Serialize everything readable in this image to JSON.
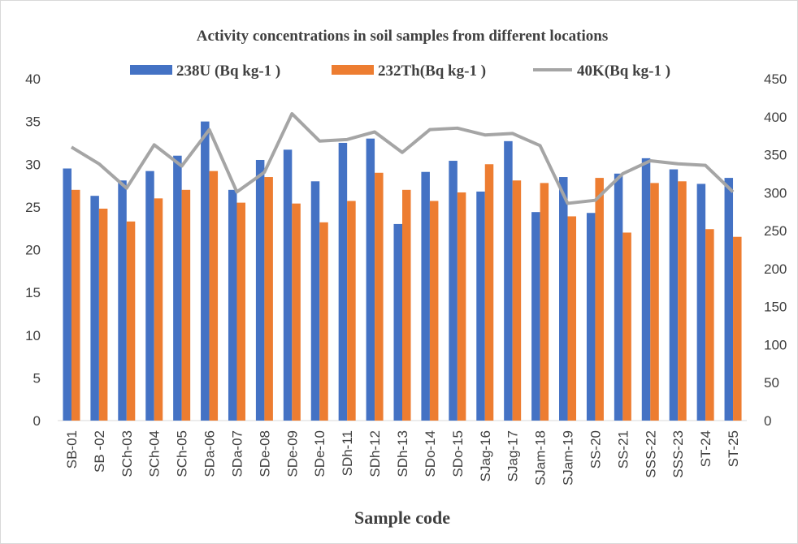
{
  "chart_data": {
    "type": "bar",
    "title": "Activity concentrations in soil samples from different locations",
    "x_label": "Sample code",
    "categories": [
      "SB-01",
      "SB -02",
      "SCh-03",
      "SCh-04",
      "SCh-05",
      "SDa-06",
      "SDa-07",
      "SDe-08",
      "SDe-09",
      "SDe-10",
      "SDh-11",
      "SDh-12",
      "SDh-13",
      "SDo-14",
      "SDo-15",
      "SJag-16",
      "SJag-17",
      "SJam-18",
      "SJam-19",
      "SS-20",
      "SS-21",
      "SSS-22",
      "SSS-23",
      "ST-24",
      "ST-25"
    ],
    "series": [
      {
        "name": "238U (Bq kg-1 )",
        "color": "#4472c4",
        "type": "bar",
        "values": [
          29.5,
          26.3,
          28.1,
          29.2,
          31.0,
          35.0,
          27.0,
          30.5,
          31.7,
          28.0,
          32.5,
          33.0,
          23.0,
          29.1,
          30.4,
          26.8,
          32.7,
          24.4,
          28.5,
          24.3,
          28.9,
          30.7,
          29.4,
          27.7,
          28.4
        ]
      },
      {
        "name": "232Th(Bq kg-1 )",
        "color": "#ed7d31",
        "type": "bar",
        "values": [
          27.0,
          24.8,
          23.3,
          26.0,
          27.0,
          29.2,
          25.5,
          28.5,
          25.4,
          23.2,
          25.7,
          29.0,
          27.0,
          25.7,
          26.7,
          30.0,
          28.1,
          27.8,
          23.9,
          28.4,
          22.0,
          27.8,
          28.0,
          22.4,
          21.5
        ]
      },
      {
        "name": "40K(Bq kg-1 )",
        "color": "#a5a5a5",
        "type": "line",
        "axis": "y2",
        "values": [
          360,
          338,
          306,
          363,
          335,
          383,
          301,
          327,
          404,
          368,
          370,
          380,
          353,
          383,
          385,
          376,
          378,
          362,
          286,
          290,
          325,
          342,
          338,
          336,
          301
        ]
      }
    ],
    "ylim": [
      0,
      40
    ],
    "yticks": [
      0,
      5,
      10,
      15,
      20,
      25,
      30,
      35,
      40
    ],
    "y2lim": [
      0,
      450
    ],
    "y2ticks": [
      0,
      50,
      100,
      150,
      200,
      250,
      300,
      350,
      400,
      450
    ],
    "grid": false,
    "legend": "top"
  }
}
